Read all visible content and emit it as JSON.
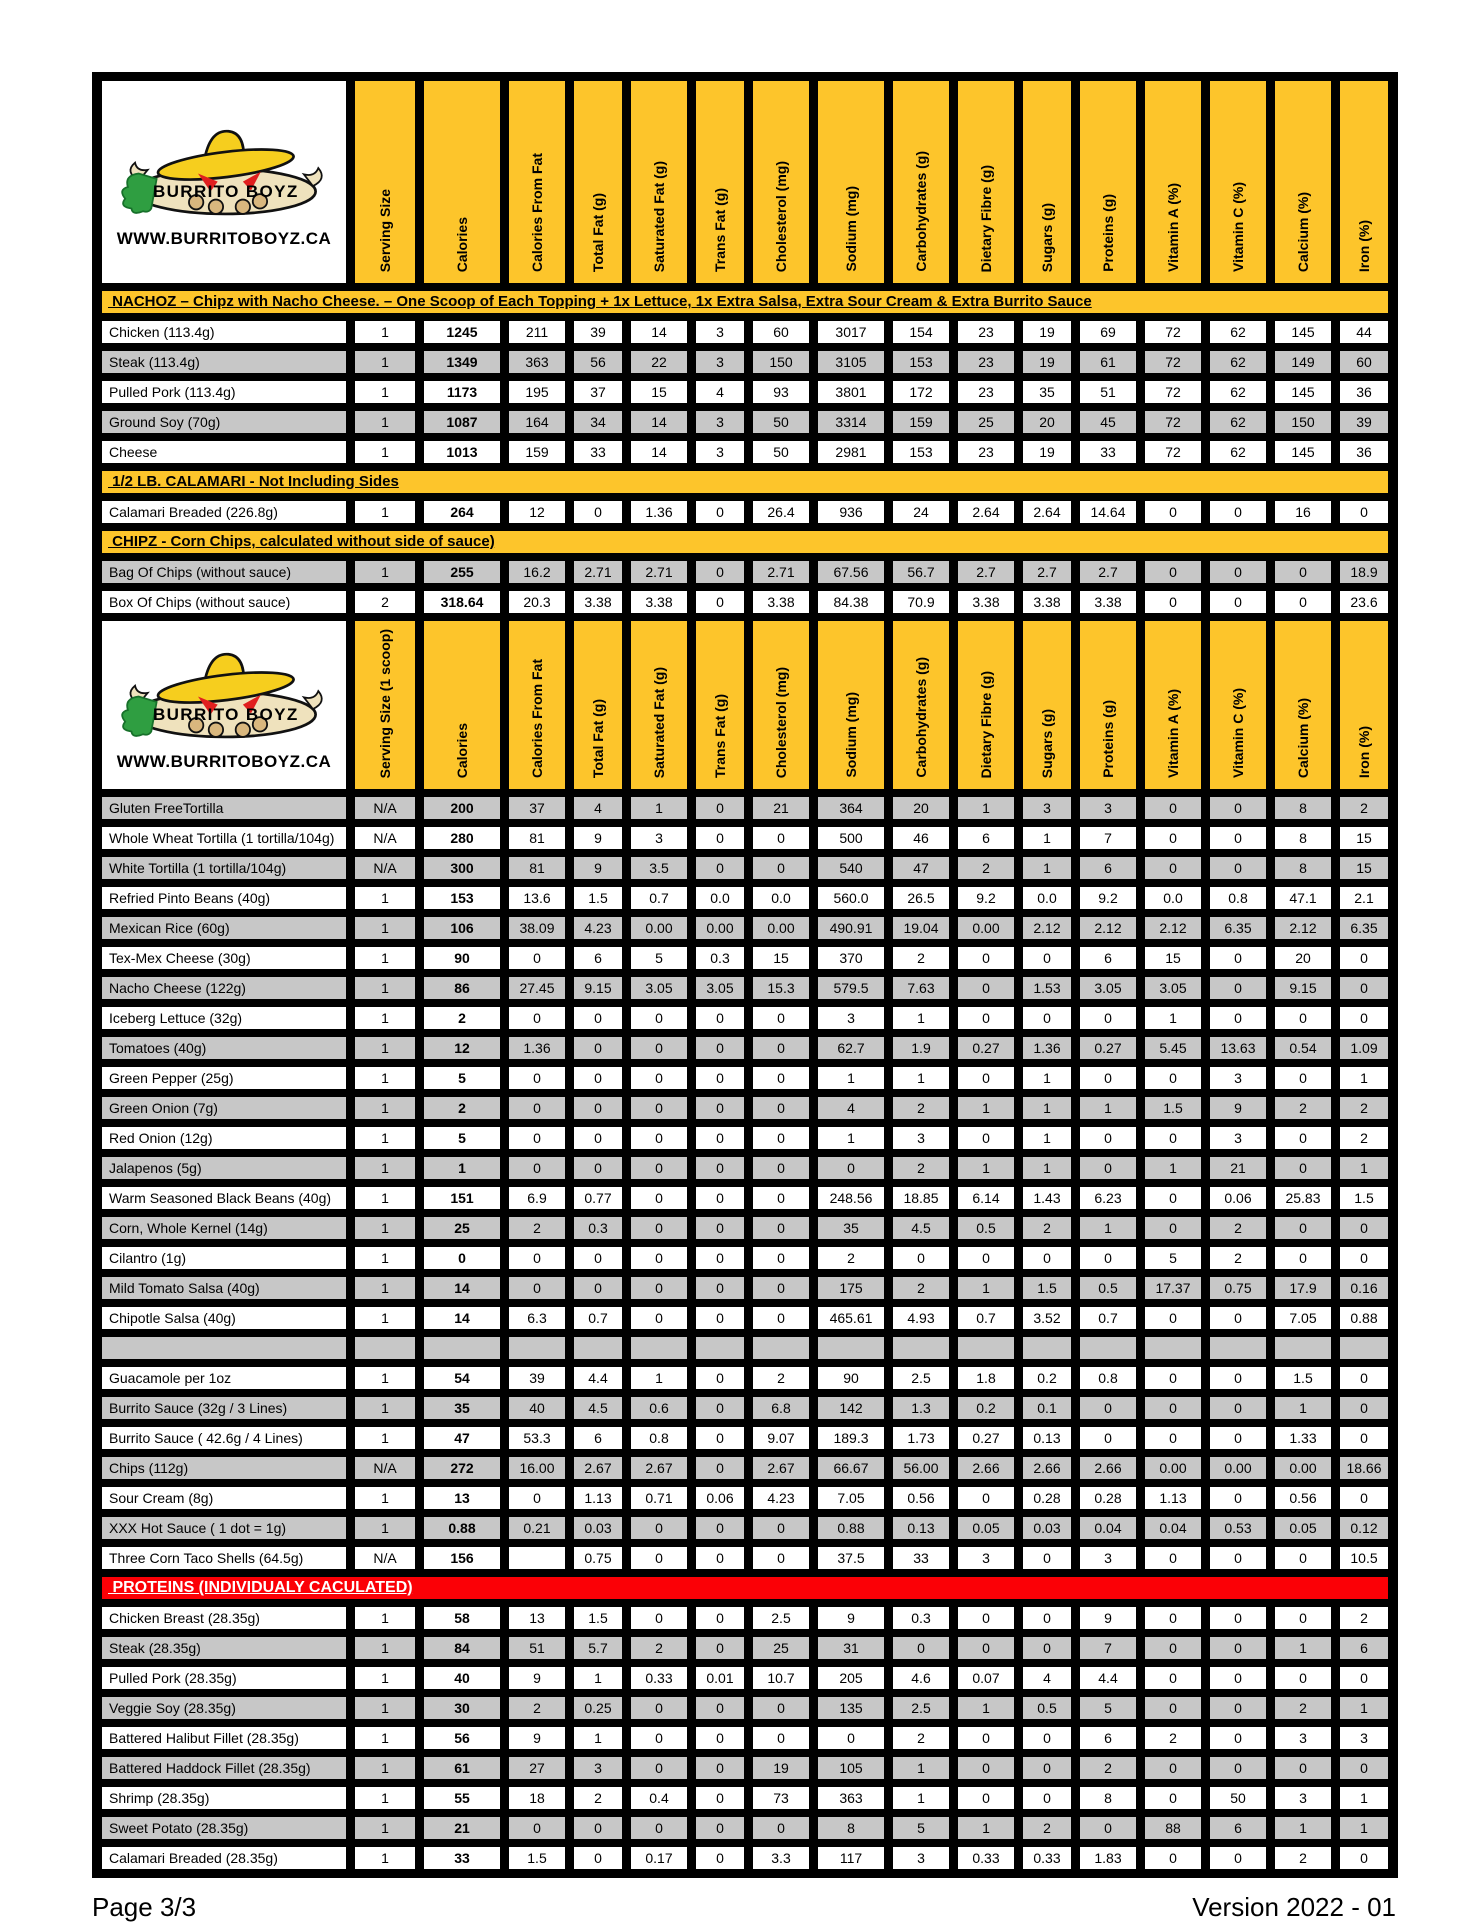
{
  "logo": {
    "brand": "BURRITO BOYZ",
    "url": "WWW.BURRITOBOYZ.CA"
  },
  "colors": {
    "yellow": "#FDC52B",
    "red": "#FB0006",
    "row_gray": "#C7C7C7",
    "row_white": "#FFFFFF"
  },
  "columns": [
    "Serving Size",
    "Calories",
    "Calories From Fat",
    "Total Fat (g)",
    "Saturated Fat (g)",
    "Trans Fat (g)",
    "Cholesterol (mg)",
    "Sodium (mg)",
    "Carbohydrates (g)",
    "Dietary Fibre (g)",
    "Sugars (g)",
    "Proteins (g)",
    "Vitamin A (%)",
    "Vitamin C (%)",
    "Calcium (%)",
    "Iron (%)"
  ],
  "table": {
    "blocks": [
      {
        "kind": "header",
        "serving_label": "Serving Size"
      },
      {
        "kind": "banner",
        "color": "yellow",
        "text": "NACHOZ – Chipz with Nacho Cheese.  – One Scoop of Each Topping + 1x Lettuce, 1x Extra Salsa, Extra Sour Cream & Extra Burrito Sauce"
      },
      {
        "kind": "rows",
        "first_shade": "white",
        "rows": [
          [
            "Chicken (113.4g)",
            "1",
            "1245",
            "211",
            "39",
            "14",
            "3",
            "60",
            "3017",
            "154",
            "23",
            "19",
            "69",
            "72",
            "62",
            "145",
            "44"
          ],
          [
            "Steak (113.4g)",
            "1",
            "1349",
            "363",
            "56",
            "22",
            "3",
            "150",
            "3105",
            "153",
            "23",
            "19",
            "61",
            "72",
            "62",
            "149",
            "60"
          ],
          [
            "Pulled Pork (113.4g)",
            "1",
            "1173",
            "195",
            "37",
            "15",
            "4",
            "93",
            "3801",
            "172",
            "23",
            "35",
            "51",
            "72",
            "62",
            "145",
            "36"
          ],
          [
            "Ground Soy (70g)",
            "1",
            "1087",
            "164",
            "34",
            "14",
            "3",
            "50",
            "3314",
            "159",
            "25",
            "20",
            "45",
            "72",
            "62",
            "150",
            "39"
          ],
          [
            "Cheese",
            "1",
            "1013",
            "159",
            "33",
            "14",
            "3",
            "50",
            "2981",
            "153",
            "23",
            "19",
            "33",
            "72",
            "62",
            "145",
            "36"
          ]
        ]
      },
      {
        "kind": "banner",
        "color": "yellow",
        "text": "1/2 LB. CALAMARI - Not Including Sides"
      },
      {
        "kind": "rows",
        "first_shade": "white",
        "rows": [
          [
            "Calamari Breaded (226.8g)",
            "1",
            "264",
            "12",
            "0",
            "1.36",
            "0",
            "26.4",
            "936",
            "24",
            "2.64",
            "2.64",
            "14.64",
            "0",
            "0",
            "16",
            "0"
          ]
        ]
      },
      {
        "kind": "banner",
        "color": "yellow",
        "text": "CHIPZ - Corn Chips, calculated without side of sauce)"
      },
      {
        "kind": "rows",
        "first_shade": "gray",
        "rows": [
          [
            "Bag Of Chips (without sauce)",
            "1",
            "255",
            "16.2",
            "2.71",
            "2.71",
            "0",
            "2.71",
            "67.56",
            "56.7",
            "2.7",
            "2.7",
            "2.7",
            "0",
            "0",
            "0",
            "18.9"
          ],
          [
            "Box Of Chips (without sauce)",
            "2",
            "318.64",
            "20.3",
            "3.38",
            "3.38",
            "0",
            "3.38",
            "84.38",
            "70.9",
            "3.38",
            "3.38",
            "3.38",
            "0",
            "0",
            "0",
            "23.6"
          ]
        ]
      },
      {
        "kind": "header",
        "serving_label": "Serving Size (1 scoop)"
      },
      {
        "kind": "rows",
        "first_shade": "gray",
        "rows": [
          [
            "Gluten FreeTortilla",
            "N/A",
            "200",
            "37",
            "4",
            "1",
            "0",
            "21",
            "364",
            "20",
            "1",
            "3",
            "3",
            "0",
            "0",
            "8",
            "2"
          ],
          [
            "Whole Wheat Tortilla (1 tortilla/104g)",
            "N/A",
            "280",
            "81",
            "9",
            "3",
            "0",
            "0",
            "500",
            "46",
            "6",
            "1",
            "7",
            "0",
            "0",
            "8",
            "15"
          ],
          [
            "White Tortilla (1 tortilla/104g)",
            "N/A",
            "300",
            "81",
            "9",
            "3.5",
            "0",
            "0",
            "540",
            "47",
            "2",
            "1",
            "6",
            "0",
            "0",
            "8",
            "15"
          ],
          [
            "Refried Pinto Beans (40g)",
            "1",
            "153",
            "13.6",
            "1.5",
            "0.7",
            "0.0",
            "0.0",
            "560.0",
            "26.5",
            "9.2",
            "0.0",
            "9.2",
            "0.0",
            "0.8",
            "47.1",
            "2.1"
          ],
          [
            "Mexican Rice (60g)",
            "1",
            "106",
            "38.09",
            "4.23",
            "0.00",
            "0.00",
            "0.00",
            "490.91",
            "19.04",
            "0.00",
            "2.12",
            "2.12",
            "2.12",
            "6.35",
            "2.12",
            "6.35"
          ],
          [
            "Tex-Mex Cheese (30g)",
            "1",
            "90",
            "0",
            "6",
            "5",
            "0.3",
            "15",
            "370",
            "2",
            "0",
            "0",
            "6",
            "15",
            "0",
            "20",
            "0"
          ],
          [
            "Nacho Cheese (122g)",
            "1",
            "86",
            "27.45",
            "9.15",
            "3.05",
            "3.05",
            "15.3",
            "579.5",
            "7.63",
            "0",
            "1.53",
            "3.05",
            "3.05",
            "0",
            "9.15",
            "0"
          ],
          [
            "Iceberg Lettuce (32g)",
            "1",
            "2",
            "0",
            "0",
            "0",
            "0",
            "0",
            "3",
            "1",
            "0",
            "0",
            "0",
            "1",
            "0",
            "0",
            "0"
          ],
          [
            "Tomatoes (40g)",
            "1",
            "12",
            "1.36",
            "0",
            "0",
            "0",
            "0",
            "62.7",
            "1.9",
            "0.27",
            "1.36",
            "0.27",
            "5.45",
            "13.63",
            "0.54",
            "1.09"
          ],
          [
            "Green Pepper (25g)",
            "1",
            "5",
            "0",
            "0",
            "0",
            "0",
            "0",
            "1",
            "1",
            "0",
            "1",
            "0",
            "0",
            "3",
            "0",
            "1"
          ],
          [
            "Green Onion (7g)",
            "1",
            "2",
            "0",
            "0",
            "0",
            "0",
            "0",
            "4",
            "2",
            "1",
            "1",
            "1",
            "1.5",
            "9",
            "2",
            "2"
          ],
          [
            "Red Onion (12g)",
            "1",
            "5",
            "0",
            "0",
            "0",
            "0",
            "0",
            "1",
            "3",
            "0",
            "1",
            "0",
            "0",
            "3",
            "0",
            "2"
          ],
          [
            "Jalapenos (5g)",
            "1",
            "1",
            "0",
            "0",
            "0",
            "0",
            "0",
            "0",
            "2",
            "1",
            "1",
            "0",
            "1",
            "21",
            "0",
            "1"
          ],
          [
            "Warm Seasoned Black Beans (40g)",
            "1",
            "151",
            "6.9",
            "0.77",
            "0",
            "0",
            "0",
            "248.56",
            "18.85",
            "6.14",
            "1.43",
            "6.23",
            "0",
            "0.06",
            "25.83",
            "1.5"
          ],
          [
            "Corn, Whole Kernel (14g)",
            "1",
            "25",
            "2",
            "0.3",
            "0",
            "0",
            "0",
            "35",
            "4.5",
            "0.5",
            "2",
            "1",
            "0",
            "2",
            "0",
            "0"
          ],
          [
            "Cilantro (1g)",
            "1",
            "0",
            "0",
            "0",
            "0",
            "0",
            "0",
            "2",
            "0",
            "0",
            "0",
            "0",
            "5",
            "2",
            "0",
            "0"
          ],
          [
            "Mild Tomato Salsa (40g)",
            "1",
            "14",
            "0",
            "0",
            "0",
            "0",
            "0",
            "175",
            "2",
            "1",
            "1.5",
            "0.5",
            "17.37",
            "0.75",
            "17.9",
            "0.16"
          ],
          [
            "Chipotle Salsa (40g)",
            "1",
            "14",
            "6.3",
            "0.7",
            "0",
            "0",
            "0",
            "465.61",
            "4.93",
            "0.7",
            "3.52",
            "0.7",
            "0",
            "0",
            "7.05",
            "0.88"
          ],
          [
            "",
            "",
            "",
            "",
            "",
            "",
            "",
            "",
            "",
            "",
            "",
            "",
            "",
            "",
            "",
            "",
            ""
          ],
          [
            "Guacamole per 1oz",
            "1",
            "54",
            "39",
            "4.4",
            "1",
            "0",
            "2",
            "90",
            "2.5",
            "1.8",
            "0.2",
            "0.8",
            "0",
            "0",
            "1.5",
            "0"
          ],
          [
            "Burrito Sauce (32g / 3 Lines)",
            "1",
            "35",
            "40",
            "4.5",
            "0.6",
            "0",
            "6.8",
            "142",
            "1.3",
            "0.2",
            "0.1",
            "0",
            "0",
            "0",
            "1",
            "0"
          ],
          [
            "Burrito Sauce ( 42.6g / 4 Lines)",
            "1",
            "47",
            "53.3",
            "6",
            "0.8",
            "0",
            "9.07",
            "189.3",
            "1.73",
            "0.27",
            "0.13",
            "0",
            "0",
            "0",
            "1.33",
            "0"
          ],
          [
            "Chips (112g)",
            "N/A",
            "272",
            "16.00",
            "2.67",
            "2.67",
            "0",
            "2.67",
            "66.67",
            "56.00",
            "2.66",
            "2.66",
            "2.66",
            "0.00",
            "0.00",
            "0.00",
            "18.66"
          ],
          [
            "Sour Cream (8g)",
            "1",
            "13",
            "0",
            "1.13",
            "0.71",
            "0.06",
            "4.23",
            "7.05",
            "0.56",
            "0",
            "0.28",
            "0.28",
            "1.13",
            "0",
            "0.56",
            "0"
          ],
          [
            "XXX Hot Sauce ( 1 dot = 1g)",
            "1",
            "0.88",
            "0.21",
            "0.03",
            "0",
            "0",
            "0",
            "0.88",
            "0.13",
            "0.05",
            "0.03",
            "0.04",
            "0.04",
            "0.53",
            "0.05",
            "0.12"
          ],
          [
            "Three Corn Taco Shells (64.5g)",
            "N/A",
            "156",
            "",
            "0.75",
            "0",
            "0",
            "0",
            "37.5",
            "33",
            "3",
            "0",
            "3",
            "0",
            "0",
            "0",
            "10.5"
          ]
        ]
      },
      {
        "kind": "banner",
        "color": "red",
        "text": "PROTEINS (INDIVIDUALY CACULATED)"
      },
      {
        "kind": "rows",
        "first_shade": "white",
        "rows": [
          [
            "Chicken Breast (28.35g)",
            "1",
            "58",
            "13",
            "1.5",
            "0",
            "0",
            "2.5",
            "9",
            "0.3",
            "0",
            "0",
            "9",
            "0",
            "0",
            "0",
            "2"
          ],
          [
            "Steak  (28.35g)",
            "1",
            "84",
            "51",
            "5.7",
            "2",
            "0",
            "25",
            "31",
            "0",
            "0",
            "0",
            "7",
            "0",
            "0",
            "1",
            "6"
          ],
          [
            "Pulled Pork  (28.35g)",
            "1",
            "40",
            "9",
            "1",
            "0.33",
            "0.01",
            "10.7",
            "205",
            "4.6",
            "0.07",
            "4",
            "4.4",
            "0",
            "0",
            "0",
            "0"
          ],
          [
            "Veggie Soy  (28.35g)",
            "1",
            "30",
            "2",
            "0.25",
            "0",
            "0",
            "0",
            "135",
            "2.5",
            "1",
            "0.5",
            "5",
            "0",
            "0",
            "2",
            "1"
          ],
          [
            "Battered Halibut Fillet  (28.35g)",
            "1",
            "56",
            "9",
            "1",
            "0",
            "0",
            "0",
            "0",
            "2",
            "0",
            "0",
            "6",
            "2",
            "0",
            "3",
            "3"
          ],
          [
            "Battered Haddock Fillet  (28.35g)",
            "1",
            "61",
            "27",
            "3",
            "0",
            "0",
            "19",
            "105",
            "1",
            "0",
            "0",
            "2",
            "0",
            "0",
            "0",
            "0"
          ],
          [
            "Shrimp  (28.35g)",
            "1",
            "55",
            "18",
            "2",
            "0.4",
            "0",
            "73",
            "363",
            "1",
            "0",
            "0",
            "8",
            "0",
            "50",
            "3",
            "1"
          ],
          [
            "Sweet Potato (28.35g)",
            "1",
            "21",
            "0",
            "0",
            "0",
            "0",
            "0",
            "8",
            "5",
            "1",
            "2",
            "0",
            "88",
            "6",
            "1",
            "1"
          ],
          [
            "Calamari Breaded  (28.35g)",
            "1",
            "33",
            "1.5",
            "0",
            "0.17",
            "0",
            "3.3",
            "117",
            "3",
            "0.33",
            "0.33",
            "1.83",
            "0",
            "0",
            "2",
            "0"
          ]
        ]
      }
    ]
  },
  "footer": {
    "page": "Page 3/3",
    "version": "Version 2022 - 01"
  }
}
